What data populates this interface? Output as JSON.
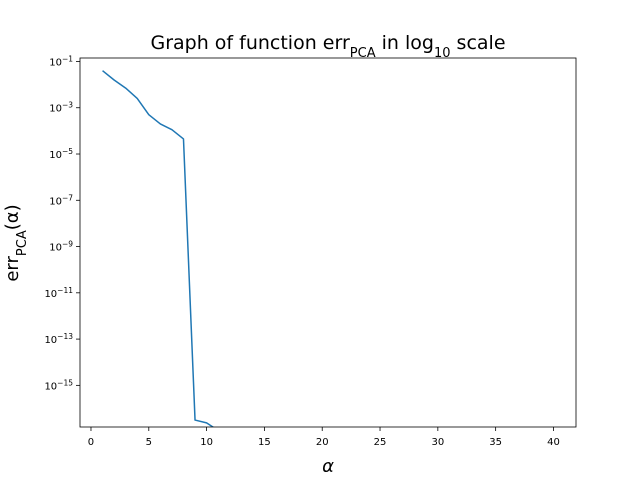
{
  "chart_data": {
    "type": "line",
    "title": {
      "prefix": "Graph of function err",
      "subscript": "PCA",
      "middle": " in log",
      "subscript2": "10",
      "suffix": " scale"
    },
    "xlabel": "α",
    "ylabel": {
      "prefix": "err",
      "subscript": "PCA",
      "suffix": "(α)"
    },
    "xscale": "linear",
    "yscale": "log",
    "xlim": [
      -0.95,
      41.95
    ],
    "ylim_log10": [
      -16.8,
      -0.85
    ],
    "xticks": [
      0,
      5,
      10,
      15,
      20,
      25,
      30,
      35,
      40
    ],
    "yticks_exp": [
      -1,
      -3,
      -5,
      -7,
      -9,
      -11,
      -13,
      -15
    ],
    "ytick_base": "10",
    "series": [
      {
        "color": "#1f77b4",
        "x": [
          1,
          2,
          3,
          4,
          5,
          6,
          7,
          8,
          9,
          10,
          11
        ],
        "y_log10": [
          -1.4,
          -1.8,
          -2.15,
          -2.6,
          -3.3,
          -3.7,
          -3.95,
          -4.35,
          -16.5,
          -16.62,
          -16.95
        ]
      }
    ],
    "grid": false,
    "legend": false
  }
}
